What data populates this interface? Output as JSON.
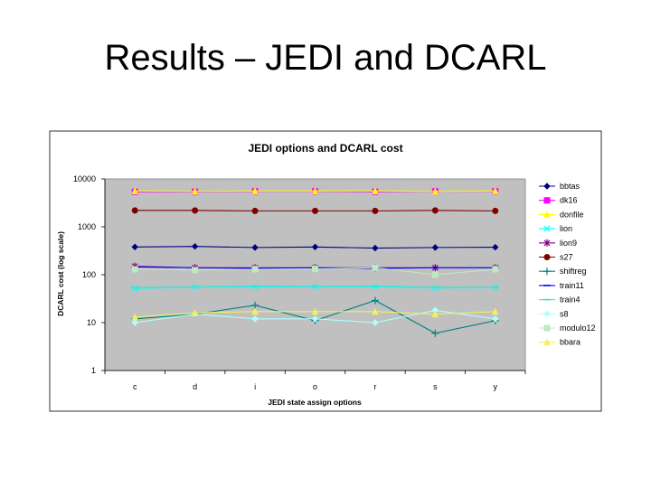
{
  "slide": {
    "title": "Results – JEDI and DCARL"
  },
  "chart_data": {
    "type": "line",
    "title": "JEDI options and DCARL cost",
    "xlabel": "JEDI state assign options",
    "ylabel": "DCARL cost (log scale)",
    "categories": [
      "c",
      "d",
      "i",
      "o",
      "r",
      "s",
      "y"
    ],
    "yscale": "log",
    "ylim": [
      1,
      10000
    ],
    "yticks": [
      {
        "value": 1,
        "label": "1"
      },
      {
        "value": 10,
        "label": "10"
      },
      {
        "value": 100,
        "label": "100"
      },
      {
        "value": 1000,
        "label": "1000"
      },
      {
        "value": 10000,
        "label": "10000"
      }
    ],
    "grid": false,
    "legend_position": "right",
    "series": [
      {
        "name": "bbtas",
        "color": "#000080",
        "marker": "diamond",
        "values": [
          380,
          390,
          370,
          380,
          360,
          370,
          375
        ]
      },
      {
        "name": "dk16",
        "color": "#ff00ff",
        "marker": "square",
        "values": [
          5400,
          5400,
          5500,
          5500,
          5400,
          5500,
          5500
        ]
      },
      {
        "name": "donfile",
        "color": "#ffff00",
        "marker": "triangle",
        "values": [
          5600,
          5500,
          5600,
          5600,
          5600,
          5500,
          5600
        ]
      },
      {
        "name": "lion",
        "color": "#00ffff",
        "marker": "x",
        "values": [
          52,
          55,
          55,
          56,
          56,
          53,
          54
        ]
      },
      {
        "name": "lion9",
        "color": "#800080",
        "marker": "star",
        "values": [
          150,
          140,
          140,
          140,
          140,
          140,
          140
        ]
      },
      {
        "name": "s27",
        "color": "#800000",
        "marker": "circle",
        "values": [
          2200,
          2200,
          2150,
          2150,
          2150,
          2200,
          2150
        ]
      },
      {
        "name": "shiftreg",
        "color": "#008080",
        "marker": "plus",
        "values": [
          12,
          15,
          23,
          11,
          29,
          6,
          11
        ]
      },
      {
        "name": "train11",
        "color": "#0000ff",
        "marker": "dash",
        "values": [
          145,
          140,
          135,
          140,
          135,
          140,
          140
        ]
      },
      {
        "name": "train4",
        "color": "#40e0d0",
        "marker": "dash",
        "values": [
          54,
          56,
          58,
          57,
          58,
          55,
          55
        ]
      },
      {
        "name": "s8",
        "color": "#b0ffff",
        "marker": "diamond",
        "values": [
          10,
          15,
          12,
          12,
          10,
          18,
          12
        ]
      },
      {
        "name": "modulo12",
        "color": "#c0e8c0",
        "marker": "square",
        "values": [
          130,
          125,
          130,
          132,
          140,
          100,
          130
        ]
      },
      {
        "name": "bbara",
        "color": "#f0f060",
        "marker": "triangle",
        "values": [
          13,
          16,
          17,
          17,
          17,
          15,
          17
        ]
      }
    ]
  }
}
